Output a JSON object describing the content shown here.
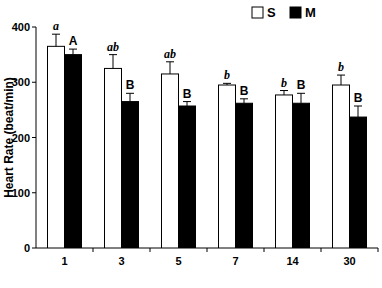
{
  "chart_data": {
    "type": "bar",
    "y_label": "Heart Rate (beat/min)",
    "categories": [
      "1",
      "3",
      "5",
      "7",
      "14",
      "30"
    ],
    "series": [
      {
        "name": "S",
        "color": "#ffffff",
        "values": [
          365,
          325,
          315,
          295,
          277,
          295
        ],
        "errors": [
          22,
          25,
          22,
          3,
          8,
          18
        ],
        "letters": [
          "a",
          "ab",
          "ab",
          "b",
          "b",
          "b"
        ]
      },
      {
        "name": "M",
        "color": "#000000",
        "values": [
          350,
          265,
          257,
          262,
          262,
          237
        ],
        "errors": [
          10,
          15,
          8,
          8,
          18,
          20
        ],
        "letters": [
          "A",
          "B",
          "B",
          "B",
          "B",
          "B"
        ]
      }
    ],
    "ylim": [
      0,
      400
    ],
    "yticks": [
      0,
      100,
      200,
      300,
      400
    ],
    "legend": "top",
    "grid": false
  }
}
